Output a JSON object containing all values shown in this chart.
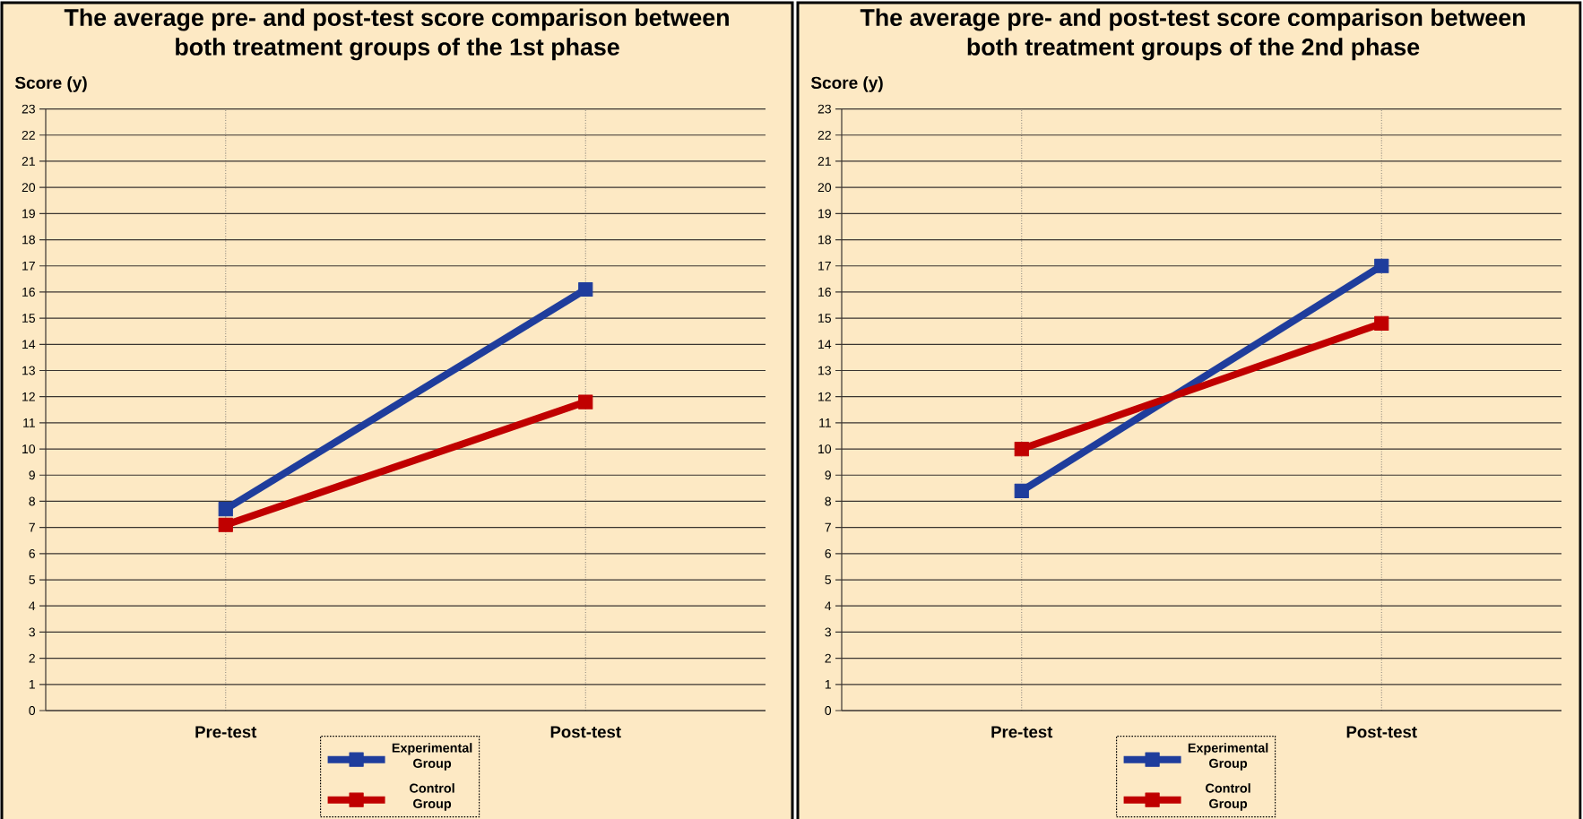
{
  "chart_data": [
    {
      "type": "line",
      "title": "The average pre- and post-test score comparison between both treatment groups of the 1st phase",
      "ylabel": "Score (y)",
      "categories": [
        "Pre-test",
        "Post-test"
      ],
      "series": [
        {
          "name": "Experimental Group",
          "color": "#1f3d9c",
          "values": [
            7.7,
            16.1
          ]
        },
        {
          "name": "Control Group",
          "color": "#c00000",
          "values": [
            7.1,
            11.8
          ]
        }
      ],
      "ylim": [
        0,
        23
      ],
      "yticks": [
        0,
        1,
        2,
        3,
        4,
        5,
        6,
        7,
        8,
        9,
        10,
        11,
        12,
        13,
        14,
        15,
        16,
        17,
        18,
        19,
        20,
        21,
        22,
        23
      ],
      "grid": true,
      "legend": "bottom",
      "marker": "square",
      "line_style": "solid"
    },
    {
      "type": "line",
      "title": "The average pre- and post-test score comparison between both treatment groups of the 2nd phase",
      "ylabel": "Score (y)",
      "categories": [
        "Pre-test",
        "Post-test"
      ],
      "series": [
        {
          "name": "Experimental Group",
          "color": "#1f3d9c",
          "values": [
            8.4,
            17.0
          ]
        },
        {
          "name": "Control Group",
          "color": "#c00000",
          "values": [
            10.0,
            14.8
          ]
        }
      ],
      "ylim": [
        0,
        23
      ],
      "yticks": [
        0,
        1,
        2,
        3,
        4,
        5,
        6,
        7,
        8,
        9,
        10,
        11,
        12,
        13,
        14,
        15,
        16,
        17,
        18,
        19,
        20,
        21,
        22,
        23
      ],
      "grid": true,
      "legend": "bottom",
      "marker": "square",
      "line_style": "solid"
    }
  ]
}
